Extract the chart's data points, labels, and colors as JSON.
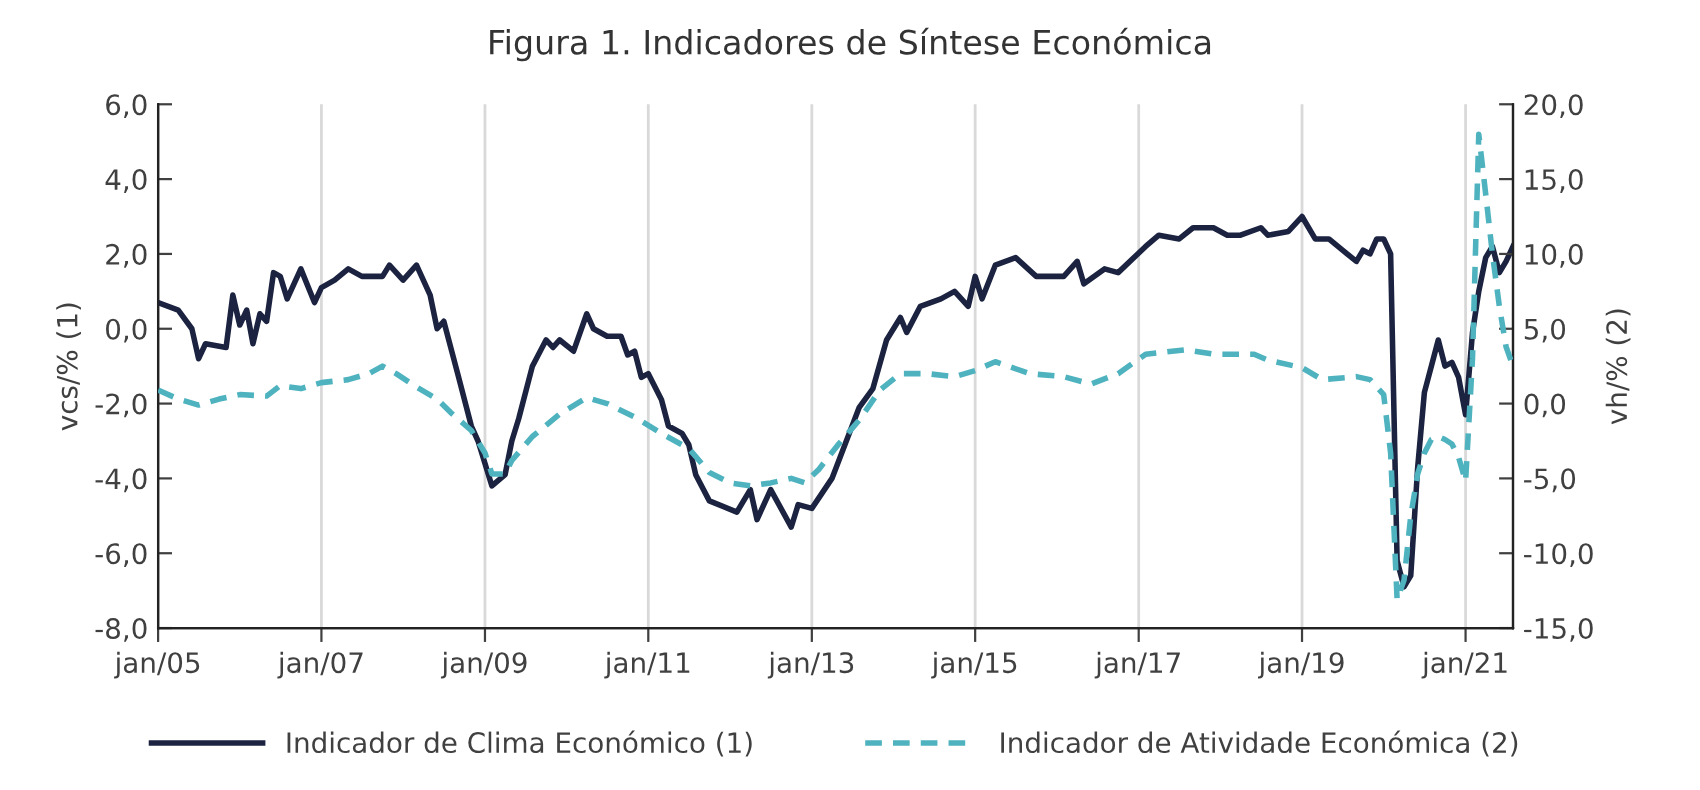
{
  "chart_data": {
    "type": "line",
    "title": "Figura 1. Indicadores de Síntese Económica",
    "ylabel": "vcs/% (1)",
    "y2label": "vh/% (2)",
    "xlim": [
      "2005-01",
      "2021-08"
    ],
    "xticks": [
      {
        "value": "2005-01",
        "label": "jan/05"
      },
      {
        "value": "2007-01",
        "label": "jan/07"
      },
      {
        "value": "2009-01",
        "label": "jan/09"
      },
      {
        "value": "2011-01",
        "label": "jan/11"
      },
      {
        "value": "2013-01",
        "label": "jan/13"
      },
      {
        "value": "2015-01",
        "label": "jan/15"
      },
      {
        "value": "2017-01",
        "label": "jan/17"
      },
      {
        "value": "2019-01",
        "label": "jan/19"
      },
      {
        "value": "2021-01",
        "label": "jan/21"
      }
    ],
    "ylim": [
      -8,
      6
    ],
    "yticks": [
      {
        "value": -8,
        "label": "-8,0"
      },
      {
        "value": -6,
        "label": "-6,0"
      },
      {
        "value": -4,
        "label": "-4,0"
      },
      {
        "value": -2,
        "label": "-2,0"
      },
      {
        "value": 0,
        "label": "0,0"
      },
      {
        "value": 2,
        "label": "2,0"
      },
      {
        "value": 4,
        "label": "4,0"
      },
      {
        "value": 6,
        "label": "6,0"
      }
    ],
    "y2lim": [
      -15,
      20
    ],
    "y2ticks": [
      {
        "value": -15,
        "label": "-15,0"
      },
      {
        "value": -10,
        "label": "-10,0"
      },
      {
        "value": -5,
        "label": "-5,0"
      },
      {
        "value": 0,
        "label": "0,0"
      },
      {
        "value": 5,
        "label": "5,0"
      },
      {
        "value": 10,
        "label": "10,0"
      },
      {
        "value": 15,
        "label": "15,0"
      },
      {
        "value": 20,
        "label": "20,0"
      }
    ],
    "grid": "x",
    "legend": "bottom",
    "series": [
      {
        "name": "Indicador de Clima Económico (1)",
        "color": "#1b2340",
        "line_style": "solid",
        "axis": "y",
        "x": [
          "2005-01",
          "2005-04",
          "2005-06",
          "2005-07",
          "2005-08",
          "2005-11",
          "2005-12",
          "2006-01",
          "2006-02",
          "2006-03",
          "2006-04",
          "2006-05",
          "2006-06",
          "2006-07",
          "2006-08",
          "2006-10",
          "2006-12",
          "2007-01",
          "2007-03",
          "2007-05",
          "2007-07",
          "2007-09",
          "2007-10",
          "2007-11",
          "2008-01",
          "2008-03",
          "2008-05",
          "2008-06",
          "2008-07",
          "2008-09",
          "2008-11",
          "2008-12",
          "2009-02",
          "2009-04",
          "2009-05",
          "2009-06",
          "2009-08",
          "2009-10",
          "2009-11",
          "2009-12",
          "2010-02",
          "2010-04",
          "2010-05",
          "2010-07",
          "2010-09",
          "2010-10",
          "2010-11",
          "2010-12",
          "2011-01",
          "2011-03",
          "2011-04",
          "2011-06",
          "2011-07",
          "2011-08",
          "2011-10",
          "2012-02",
          "2012-04",
          "2012-05",
          "2012-07",
          "2012-10",
          "2012-11",
          "2013-01",
          "2013-04",
          "2013-08",
          "2013-10",
          "2013-12",
          "2014-02",
          "2014-03",
          "2014-05",
          "2014-08",
          "2014-10",
          "2014-12",
          "2015-01",
          "2015-02",
          "2015-04",
          "2015-07",
          "2015-10",
          "2016-02",
          "2016-04",
          "2016-05",
          "2016-08",
          "2016-10",
          "2017-02",
          "2017-04",
          "2017-07",
          "2017-09",
          "2017-12",
          "2018-02",
          "2018-04",
          "2018-07",
          "2018-08",
          "2018-11",
          "2019-01",
          "2019-03",
          "2019-05",
          "2019-07",
          "2019-09",
          "2019-10",
          "2019-11",
          "2019-12",
          "2020-01",
          "2020-02",
          "2020-03",
          "2020-04",
          "2020-05",
          "2020-06",
          "2020-07",
          "2020-08",
          "2020-09",
          "2020-10",
          "2020-11",
          "2020-12",
          "2021-01",
          "2021-02",
          "2021-03",
          "2021-04",
          "2021-05",
          "2021-06",
          "2021-07",
          "2021-08"
        ],
        "values": [
          0.7,
          0.5,
          0.0,
          -0.8,
          -0.4,
          -0.5,
          0.9,
          0.1,
          0.5,
          -0.4,
          0.4,
          0.2,
          1.5,
          1.4,
          0.8,
          1.6,
          0.7,
          1.1,
          1.3,
          1.6,
          1.4,
          1.4,
          1.4,
          1.7,
          1.3,
          1.7,
          0.9,
          0.0,
          0.2,
          -1.2,
          -2.6,
          -3.0,
          -4.2,
          -3.9,
          -3.0,
          -2.4,
          -1.0,
          -0.3,
          -0.5,
          -0.3,
          -0.6,
          0.4,
          0.0,
          -0.2,
          -0.2,
          -0.7,
          -0.6,
          -1.3,
          -1.2,
          -1.9,
          -2.6,
          -2.8,
          -3.1,
          -3.9,
          -4.6,
          -4.9,
          -4.3,
          -5.1,
          -4.3,
          -5.3,
          -4.7,
          -4.8,
          -4.0,
          -2.1,
          -1.6,
          -0.3,
          0.3,
          -0.1,
          0.6,
          0.8,
          1.0,
          0.6,
          1.4,
          0.8,
          1.7,
          1.9,
          1.4,
          1.4,
          1.8,
          1.2,
          1.6,
          1.5,
          2.2,
          2.5,
          2.4,
          2.7,
          2.7,
          2.5,
          2.5,
          2.7,
          2.5,
          2.6,
          3.0,
          2.4,
          2.4,
          2.1,
          1.8,
          2.1,
          2.0,
          2.4,
          2.4,
          2.0,
          -6.2,
          -6.9,
          -6.6,
          -3.7,
          -1.7,
          -1.0,
          -0.3,
          -1.0,
          -0.9,
          -1.3,
          -2.3,
          -0.1,
          1.0,
          1.9,
          2.2,
          1.5,
          1.8,
          2.2
        ]
      },
      {
        "name": "Indicador de Atividade Económica (2)",
        "color": "#4fb3bf",
        "line_style": "dashed",
        "axis": "y2",
        "x": [
          "2005-01",
          "2005-04",
          "2005-07",
          "2005-10",
          "2006-01",
          "2006-05",
          "2006-07",
          "2006-10",
          "2007-01",
          "2007-05",
          "2007-08",
          "2007-10",
          "2007-12",
          "2008-03",
          "2008-06",
          "2008-08",
          "2008-11",
          "2009-01",
          "2009-02",
          "2009-04",
          "2009-05",
          "2009-08",
          "2009-12",
          "2010-04",
          "2010-07",
          "2010-11",
          "2011-03",
          "2011-07",
          "2011-10",
          "2012-01",
          "2012-04",
          "2012-07",
          "2012-10",
          "2012-12",
          "2013-02",
          "2013-05",
          "2013-08",
          "2013-11",
          "2014-02",
          "2014-06",
          "2014-10",
          "2015-01",
          "2015-04",
          "2015-09",
          "2016-02",
          "2016-06",
          "2016-10",
          "2017-02",
          "2017-08",
          "2017-12",
          "2018-06",
          "2018-08",
          "2019-01",
          "2019-04",
          "2019-09",
          "2019-11",
          "2020-01",
          "2020-02",
          "2020-03",
          "2020-04",
          "2020-05",
          "2020-06",
          "2020-07",
          "2020-08",
          "2020-09",
          "2020-10",
          "2020-11",
          "2020-12",
          "2021-01",
          "2021-02",
          "2021-03",
          "2021-04",
          "2021-05",
          "2021-06",
          "2021-07",
          "2021-08"
        ],
        "values": [
          0.9,
          0.3,
          -0.1,
          0.3,
          0.6,
          0.5,
          1.2,
          1.0,
          1.4,
          1.6,
          2.0,
          2.5,
          2.0,
          1.1,
          0.3,
          -0.6,
          -1.8,
          -3.3,
          -4.7,
          -4.7,
          -3.8,
          -2.2,
          -0.7,
          0.4,
          0.0,
          -0.9,
          -2.0,
          -3.0,
          -4.6,
          -5.3,
          -5.5,
          -5.3,
          -5.0,
          -5.3,
          -4.4,
          -2.7,
          -1.1,
          0.9,
          2.0,
          2.0,
          1.8,
          2.2,
          2.8,
          2.0,
          1.8,
          1.3,
          2.0,
          3.3,
          3.6,
          3.3,
          3.3,
          2.9,
          2.4,
          1.6,
          1.8,
          1.6,
          0.6,
          -3.3,
          -13.1,
          -11.8,
          -7.5,
          -4.7,
          -3.3,
          -2.4,
          -2.2,
          -2.4,
          -2.7,
          -3.6,
          -5.2,
          3.0,
          18.0,
          14.0,
          10.0,
          6.5,
          3.8,
          2.5
        ]
      }
    ]
  }
}
